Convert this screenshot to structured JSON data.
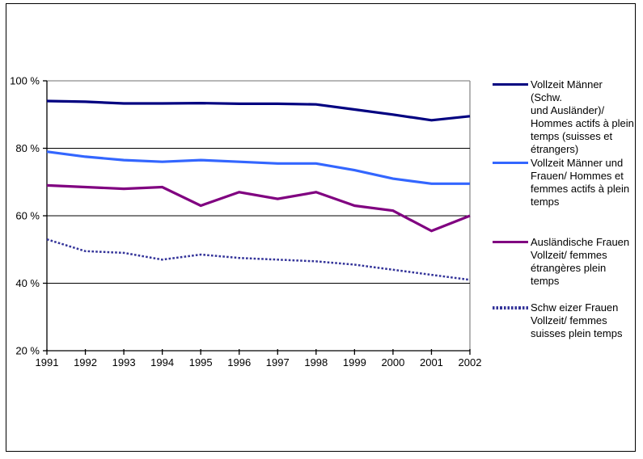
{
  "window": {
    "background_color": "#FFFFFF",
    "border_color": "#000000"
  },
  "chart_data": {
    "type": "line",
    "title": "",
    "xlabel": "",
    "ylabel": "",
    "x": [
      "1991",
      "1992",
      "1993",
      "1994",
      "1995",
      "1996",
      "1997",
      "1998",
      "1999",
      "2000",
      "2001",
      "2002"
    ],
    "ylim": [
      20,
      100
    ],
    "y_ticks": [
      100,
      80,
      60,
      40,
      20
    ],
    "y_tick_labels": [
      "100 %",
      "80 %",
      "60 %",
      "40 %",
      "20 %"
    ],
    "grid": "horizontal-black-with-gray-top-and-right-border",
    "legend_position": "right",
    "colors": {
      "gridline": "#000000",
      "plot_border_gray": "#8c8c8c",
      "axis": "#000000"
    },
    "series": [
      {
        "name": "vollzeit-maenner-total",
        "label": "Vollzeit Männer (Schw.\nund Ausländer)/\nHommes actifs à plein\ntemps (suisses et\nétrangers)",
        "color": "#000080",
        "line_style": "solid",
        "values": [
          94,
          93.8,
          93.3,
          93.3,
          93.4,
          93.2,
          93.2,
          93,
          91.5,
          90,
          88.3,
          89.5
        ]
      },
      {
        "name": "vollzeit-maenner-und-frauen",
        "label": "Vollzeit Männer und\nFrauen/ Hommes et\nfemmes actifs à plein\ntemps",
        "color": "#3366FF",
        "line_style": "solid",
        "values": [
          79,
          77.5,
          76.5,
          76,
          76.5,
          76,
          75.5,
          75.5,
          73.5,
          71,
          69.5,
          69.5
        ]
      },
      {
        "name": "auslaendische-frauen-vollzeit",
        "label": "Ausländische Frauen\nVollzeit/ femmes\nétrangères plein temps",
        "color": "#800080",
        "line_style": "solid",
        "values": [
          69,
          68.5,
          68,
          68.5,
          63,
          67,
          65,
          67,
          63,
          61.5,
          55.5,
          60
        ]
      },
      {
        "name": "schweizer-frauen-vollzeit",
        "label": "Schw eizer Frauen\nVollzeit/ femmes\nsuisses plein temps",
        "color": "#333399",
        "line_style": "dotted",
        "values": [
          53,
          49.5,
          49,
          47,
          48.5,
          47.5,
          47,
          46.5,
          45.5,
          44,
          42.5,
          41
        ]
      }
    ]
  }
}
